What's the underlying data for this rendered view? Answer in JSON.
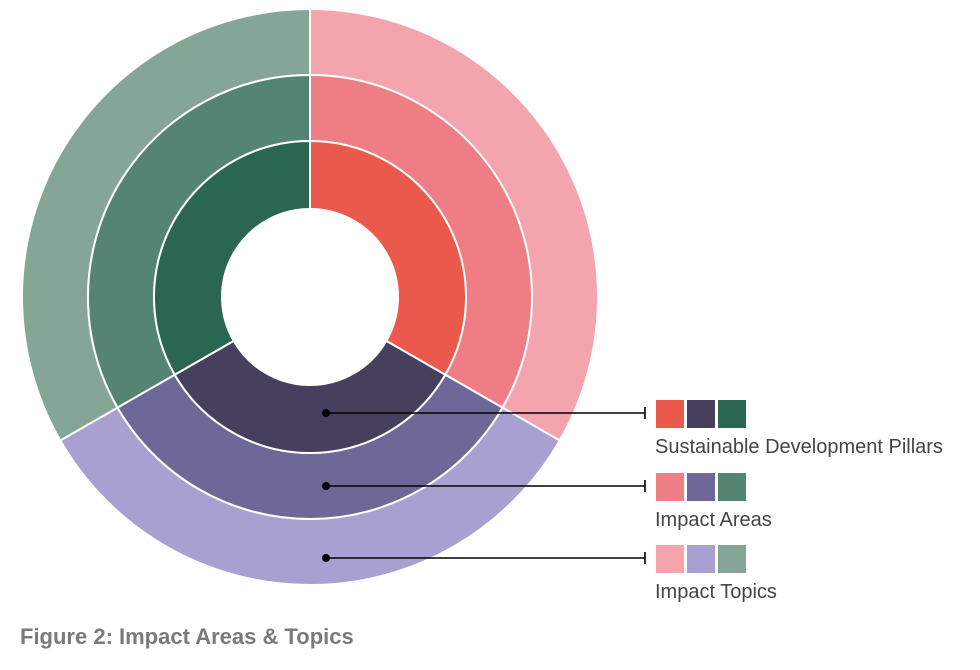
{
  "caption": "Figure 2: Impact Areas & Topics",
  "rings": [
    {
      "id": "pillars",
      "label": "Sustainable Development Pillars",
      "colors": [
        "#ea594b",
        "#463f5e",
        "#2b6652"
      ]
    },
    {
      "id": "areas",
      "label": "Impact Areas",
      "colors": [
        "#ef7d85",
        "#6e6899",
        "#548572"
      ]
    },
    {
      "id": "topics",
      "label": "Impact Topics",
      "colors": [
        "#f4a4ad",
        "#a7a0d0",
        "#85a597"
      ]
    }
  ],
  "segments": [
    {
      "name": "segment-red",
      "share": 0.333
    },
    {
      "name": "segment-purple",
      "share": 0.334
    },
    {
      "name": "segment-green",
      "share": 0.333
    }
  ]
}
